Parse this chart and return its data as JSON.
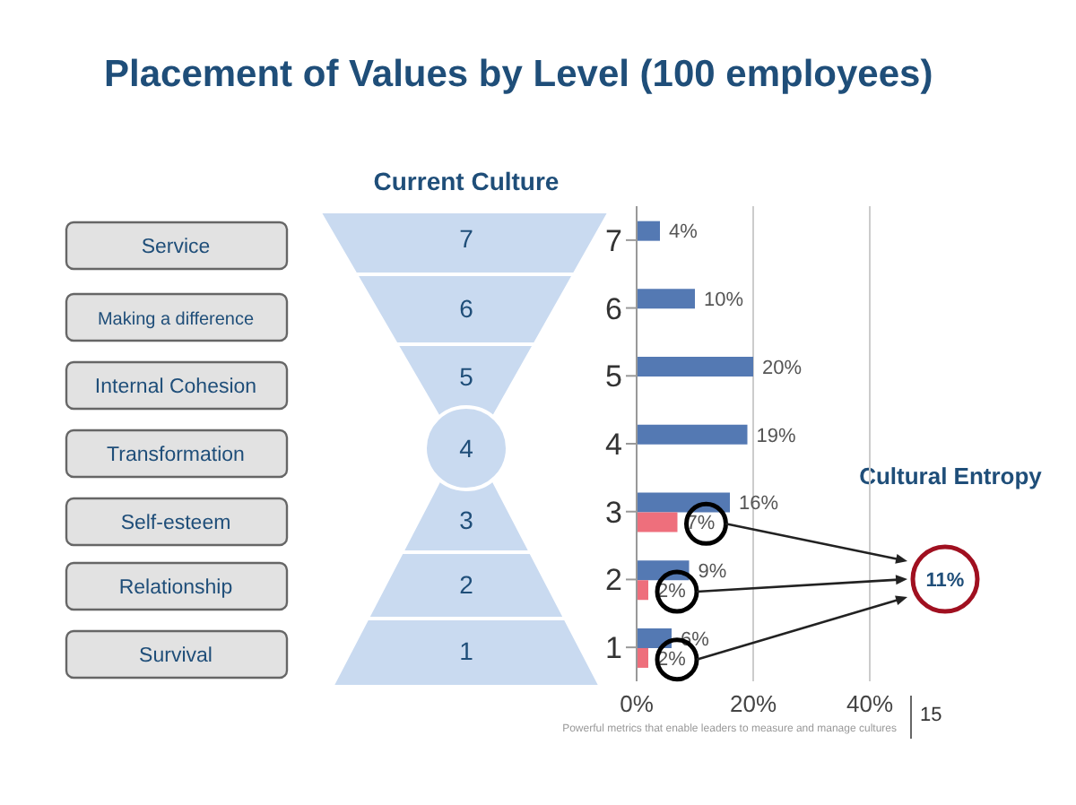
{
  "chart_data": {
    "type": "bar",
    "orientation": "horizontal",
    "title": "Placement of Values by Level (100 employees)",
    "categories": [
      "7",
      "6",
      "5",
      "4",
      "3",
      "2",
      "1"
    ],
    "series": [
      {
        "color": "#5479b3",
        "values": [
          4,
          10,
          20,
          19,
          16,
          9,
          6
        ],
        "value_labels": [
          "4%",
          "10%",
          "20%",
          "19%",
          "16%",
          "9%",
          "6%"
        ]
      },
      {
        "color": "#ee6f7c",
        "values": [
          null,
          null,
          null,
          null,
          7,
          2,
          2
        ],
        "value_labels": [
          null,
          null,
          null,
          null,
          "7%",
          "2%",
          "2%"
        ]
      }
    ],
    "xlim": [
      0,
      40
    ],
    "xticks": [
      {
        "value": 0,
        "label": "0%"
      },
      {
        "value": 20,
        "label": "20%"
      },
      {
        "value": 40,
        "label": "40%"
      }
    ],
    "grid": "x",
    "annotations": [
      "Service",
      "Making a difference",
      "Internal Cohesion",
      "Transformation",
      "Self-esteem",
      "Relationship",
      "Survival",
      "Current Culture",
      "Cultural Entropy",
      "11%",
      "Powerful metrics that enable leaders to measure and manage cultures",
      "15"
    ]
  }
}
